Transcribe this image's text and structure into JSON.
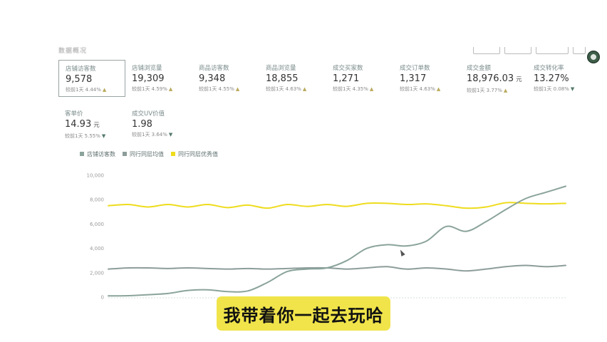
{
  "header": {
    "title": "数据概况"
  },
  "metrics": [
    {
      "label": "店铺访客数",
      "value": "9,578",
      "unit": "",
      "change": "较前1天 4.44%",
      "trend": "up",
      "selected": true
    },
    {
      "label": "店铺浏览量",
      "value": "19,309",
      "unit": "",
      "change": "较前1天 4.59%",
      "trend": "up",
      "selected": false
    },
    {
      "label": "商品访客数",
      "value": "9,348",
      "unit": "",
      "change": "较前1天 4.55%",
      "trend": "up",
      "selected": false
    },
    {
      "label": "商品浏览量",
      "value": "18,855",
      "unit": "",
      "change": "较前1天 4.63%",
      "trend": "up",
      "selected": false
    },
    {
      "label": "成交买家数",
      "value": "1,271",
      "unit": "",
      "change": "较前1天 4.35%",
      "trend": "up",
      "selected": false
    },
    {
      "label": "成交订单数",
      "value": "1,317",
      "unit": "",
      "change": "较前1天 4.63%",
      "trend": "up",
      "selected": false
    },
    {
      "label": "成交金额",
      "value": "18,976.03",
      "unit": "元",
      "change": "较前1天 3.77%",
      "trend": "up",
      "selected": false
    },
    {
      "label": "成交转化率",
      "value": "13.27%",
      "unit": "",
      "change": "较前1天 0.08%",
      "trend": "down",
      "selected": false
    },
    {
      "label": "客单价",
      "value": "14.93",
      "unit": "元",
      "change": "较前1天 5.55%",
      "trend": "down",
      "selected": false
    },
    {
      "label": "成交UV价值",
      "value": "1.98",
      "unit": "",
      "change": "较前1天 3.64%",
      "trend": "down",
      "selected": false
    }
  ],
  "icons": {
    "up": "▲",
    "down": "▼"
  },
  "colors": {
    "series_1": "#8aa39b",
    "series_2": "#8c9d9a",
    "series_3": "#eedc1d"
  },
  "chart_data": {
    "type": "line",
    "ylim": [
      0,
      10000
    ],
    "yticks": [
      "0",
      "2,000",
      "4,000",
      "6,000",
      "8,000",
      "10,000"
    ],
    "x": [
      0,
      1,
      2,
      3,
      4,
      5,
      6,
      7,
      8,
      9,
      10,
      11,
      12,
      13,
      14,
      15,
      16,
      17,
      18,
      19,
      20,
      21,
      22,
      23
    ],
    "series": [
      {
        "name": "店铺访客数",
        "color": "#8aa39b",
        "values": [
          100,
          120,
          200,
          300,
          550,
          600,
          450,
          500,
          1200,
          2100,
          2300,
          2400,
          3000,
          4000,
          4300,
          4200,
          4600,
          5800,
          5400,
          6200,
          7200,
          8100,
          8600,
          9100
        ]
      },
      {
        "name": "同行同层均值",
        "color": "#8c9d9a",
        "values": [
          2300,
          2400,
          2400,
          2350,
          2400,
          2350,
          2300,
          2350,
          2300,
          2350,
          2400,
          2400,
          2300,
          2400,
          2500,
          2300,
          2400,
          2300,
          2150,
          2300,
          2500,
          2600,
          2500,
          2600
        ]
      },
      {
        "name": "同行同层优秀值",
        "color": "#eedc1d",
        "values": [
          7500,
          7600,
          7400,
          7600,
          7400,
          7600,
          7350,
          7550,
          7300,
          7600,
          7450,
          7600,
          7450,
          7700,
          7700,
          7600,
          7650,
          7500,
          7300,
          7400,
          7750,
          7700,
          7650,
          7700
        ]
      }
    ]
  },
  "subtitle": {
    "text": "我带着你一起去玩哈"
  }
}
